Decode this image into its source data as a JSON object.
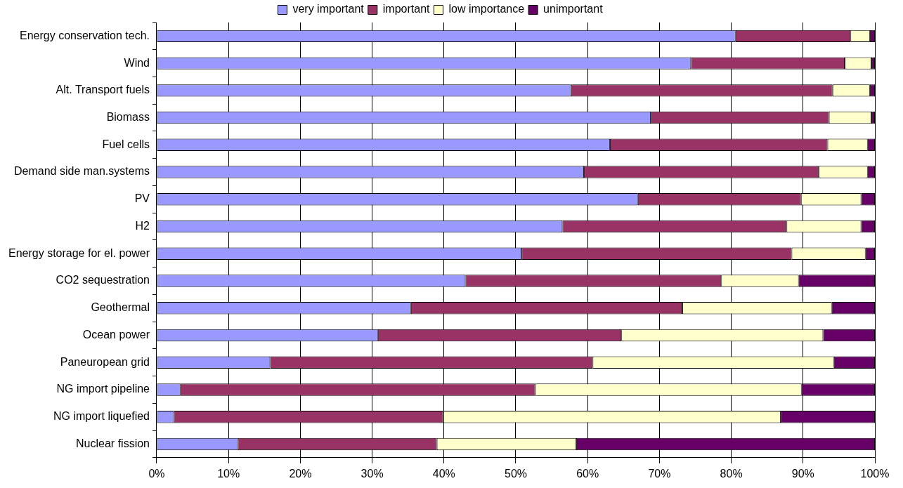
{
  "chart_data": {
    "type": "bar",
    "orientation": "horizontal",
    "stacked": true,
    "categories": [
      "Energy conservation tech.",
      "Wind",
      "Alt. Transport fuels",
      "Biomass",
      "Fuel cells",
      "Demand side man.systems",
      "PV",
      "H2",
      "Energy storage for el. power",
      "CO2 sequestration",
      "Geothermal",
      "Ocean power",
      "Paneuropean grid",
      "NG import pipeline",
      "NG import liquefied",
      "Nuclear fission"
    ],
    "series": [
      {
        "name": "very important",
        "color": "#9999ff",
        "values": [
          80.6,
          74.4,
          57.7,
          68.8,
          63.1,
          59.5,
          67.0,
          56.5,
          50.8,
          43.0,
          35.4,
          30.8,
          15.8,
          3.3,
          2.4,
          11.3
        ]
      },
      {
        "name": "important",
        "color": "#993366",
        "values": [
          16.0,
          21.4,
          36.4,
          24.8,
          30.3,
          32.7,
          22.7,
          31.2,
          37.6,
          35.6,
          37.8,
          33.9,
          44.9,
          49.4,
          37.5,
          27.7
        ]
      },
      {
        "name": "low importance",
        "color": "#ffffcc",
        "values": [
          2.7,
          3.7,
          5.2,
          5.9,
          5.6,
          6.8,
          8.4,
          10.4,
          10.3,
          10.8,
          20.8,
          28.1,
          33.6,
          37.1,
          47.0,
          19.4
        ]
      },
      {
        "name": "unimportant",
        "color": "#660066",
        "values": [
          0.7,
          0.5,
          0.7,
          0.5,
          1.0,
          1.0,
          1.9,
          1.9,
          1.3,
          10.6,
          6.0,
          7.2,
          5.7,
          10.2,
          13.1,
          41.6
        ]
      }
    ],
    "xlim": [
      0,
      100
    ],
    "xticks": [
      {
        "value": 0,
        "label": "0%"
      },
      {
        "value": 10,
        "label": "10%"
      },
      {
        "value": 20,
        "label": "20%"
      },
      {
        "value": 30,
        "label": "30%"
      },
      {
        "value": 40,
        "label": "40%"
      },
      {
        "value": 50,
        "label": "50%"
      },
      {
        "value": 60,
        "label": "60%"
      },
      {
        "value": 70,
        "label": "70%"
      },
      {
        "value": 80,
        "label": "80%"
      },
      {
        "value": 90,
        "label": "90%"
      },
      {
        "value": 100,
        "label": "100%"
      }
    ],
    "grid": "x",
    "legend": "top"
  }
}
